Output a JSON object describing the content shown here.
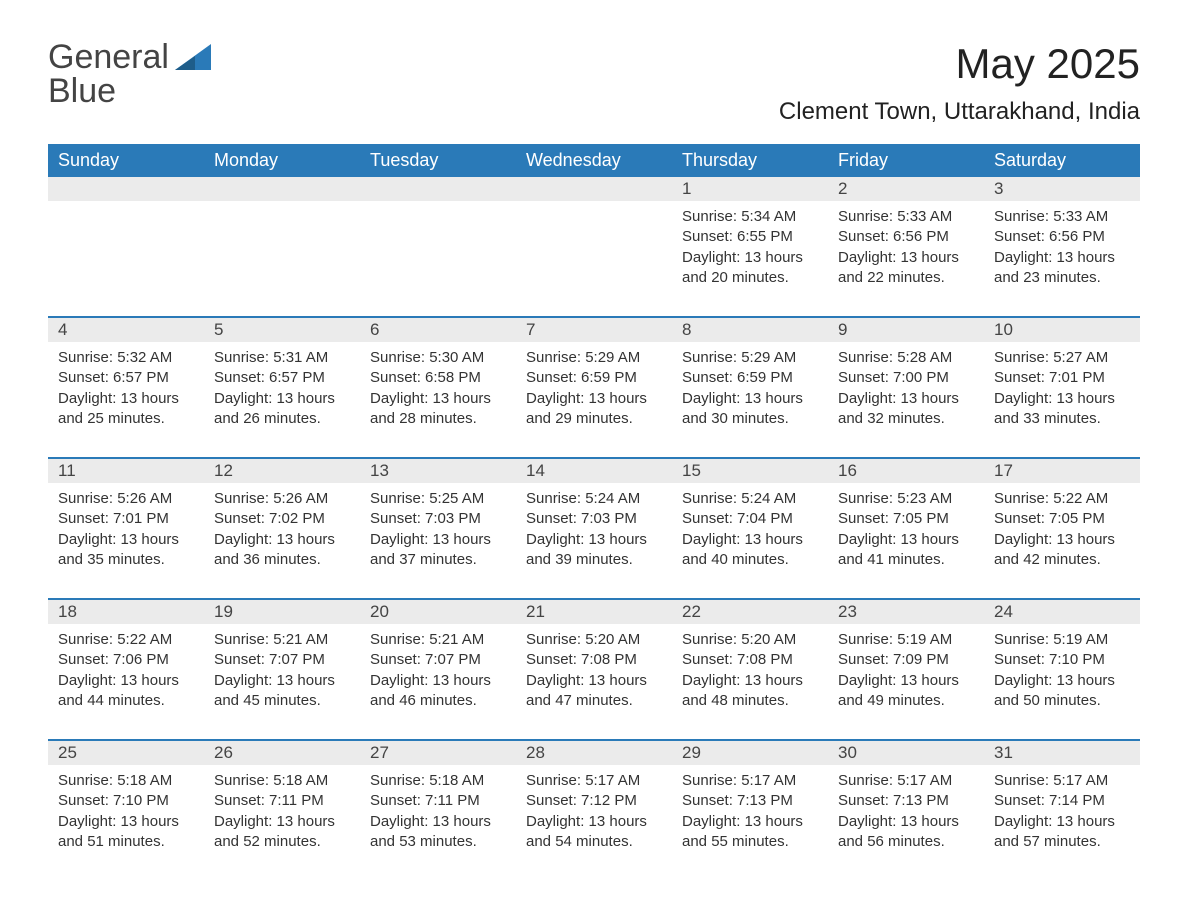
{
  "logo": {
    "word1": "General",
    "word2": "Blue"
  },
  "title": "May 2025",
  "location": "Clement Town, Uttarakhand, India",
  "colors": {
    "header_bg": "#2a7ab8",
    "header_text": "#ffffff",
    "daynum_bg": "#ebebeb",
    "text": "#333333",
    "row_divider": "#2a7ab8",
    "page_bg": "#ffffff"
  },
  "fonts": {
    "title_size_pt": 32,
    "location_size_pt": 18,
    "dayheader_size_pt": 14,
    "body_size_pt": 11
  },
  "day_headers": [
    "Sunday",
    "Monday",
    "Tuesday",
    "Wednesday",
    "Thursday",
    "Friday",
    "Saturday"
  ],
  "weeks": [
    [
      null,
      null,
      null,
      null,
      {
        "n": "1",
        "sunrise": "Sunrise: 5:34 AM",
        "sunset": "Sunset: 6:55 PM",
        "day": "Daylight: 13 hours and 20 minutes."
      },
      {
        "n": "2",
        "sunrise": "Sunrise: 5:33 AM",
        "sunset": "Sunset: 6:56 PM",
        "day": "Daylight: 13 hours and 22 minutes."
      },
      {
        "n": "3",
        "sunrise": "Sunrise: 5:33 AM",
        "sunset": "Sunset: 6:56 PM",
        "day": "Daylight: 13 hours and 23 minutes."
      }
    ],
    [
      {
        "n": "4",
        "sunrise": "Sunrise: 5:32 AM",
        "sunset": "Sunset: 6:57 PM",
        "day": "Daylight: 13 hours and 25 minutes."
      },
      {
        "n": "5",
        "sunrise": "Sunrise: 5:31 AM",
        "sunset": "Sunset: 6:57 PM",
        "day": "Daylight: 13 hours and 26 minutes."
      },
      {
        "n": "6",
        "sunrise": "Sunrise: 5:30 AM",
        "sunset": "Sunset: 6:58 PM",
        "day": "Daylight: 13 hours and 28 minutes."
      },
      {
        "n": "7",
        "sunrise": "Sunrise: 5:29 AM",
        "sunset": "Sunset: 6:59 PM",
        "day": "Daylight: 13 hours and 29 minutes."
      },
      {
        "n": "8",
        "sunrise": "Sunrise: 5:29 AM",
        "sunset": "Sunset: 6:59 PM",
        "day": "Daylight: 13 hours and 30 minutes."
      },
      {
        "n": "9",
        "sunrise": "Sunrise: 5:28 AM",
        "sunset": "Sunset: 7:00 PM",
        "day": "Daylight: 13 hours and 32 minutes."
      },
      {
        "n": "10",
        "sunrise": "Sunrise: 5:27 AM",
        "sunset": "Sunset: 7:01 PM",
        "day": "Daylight: 13 hours and 33 minutes."
      }
    ],
    [
      {
        "n": "11",
        "sunrise": "Sunrise: 5:26 AM",
        "sunset": "Sunset: 7:01 PM",
        "day": "Daylight: 13 hours and 35 minutes."
      },
      {
        "n": "12",
        "sunrise": "Sunrise: 5:26 AM",
        "sunset": "Sunset: 7:02 PM",
        "day": "Daylight: 13 hours and 36 minutes."
      },
      {
        "n": "13",
        "sunrise": "Sunrise: 5:25 AM",
        "sunset": "Sunset: 7:03 PM",
        "day": "Daylight: 13 hours and 37 minutes."
      },
      {
        "n": "14",
        "sunrise": "Sunrise: 5:24 AM",
        "sunset": "Sunset: 7:03 PM",
        "day": "Daylight: 13 hours and 39 minutes."
      },
      {
        "n": "15",
        "sunrise": "Sunrise: 5:24 AM",
        "sunset": "Sunset: 7:04 PM",
        "day": "Daylight: 13 hours and 40 minutes."
      },
      {
        "n": "16",
        "sunrise": "Sunrise: 5:23 AM",
        "sunset": "Sunset: 7:05 PM",
        "day": "Daylight: 13 hours and 41 minutes."
      },
      {
        "n": "17",
        "sunrise": "Sunrise: 5:22 AM",
        "sunset": "Sunset: 7:05 PM",
        "day": "Daylight: 13 hours and 42 minutes."
      }
    ],
    [
      {
        "n": "18",
        "sunrise": "Sunrise: 5:22 AM",
        "sunset": "Sunset: 7:06 PM",
        "day": "Daylight: 13 hours and 44 minutes."
      },
      {
        "n": "19",
        "sunrise": "Sunrise: 5:21 AM",
        "sunset": "Sunset: 7:07 PM",
        "day": "Daylight: 13 hours and 45 minutes."
      },
      {
        "n": "20",
        "sunrise": "Sunrise: 5:21 AM",
        "sunset": "Sunset: 7:07 PM",
        "day": "Daylight: 13 hours and 46 minutes."
      },
      {
        "n": "21",
        "sunrise": "Sunrise: 5:20 AM",
        "sunset": "Sunset: 7:08 PM",
        "day": "Daylight: 13 hours and 47 minutes."
      },
      {
        "n": "22",
        "sunrise": "Sunrise: 5:20 AM",
        "sunset": "Sunset: 7:08 PM",
        "day": "Daylight: 13 hours and 48 minutes."
      },
      {
        "n": "23",
        "sunrise": "Sunrise: 5:19 AM",
        "sunset": "Sunset: 7:09 PM",
        "day": "Daylight: 13 hours and 49 minutes."
      },
      {
        "n": "24",
        "sunrise": "Sunrise: 5:19 AM",
        "sunset": "Sunset: 7:10 PM",
        "day": "Daylight: 13 hours and 50 minutes."
      }
    ],
    [
      {
        "n": "25",
        "sunrise": "Sunrise: 5:18 AM",
        "sunset": "Sunset: 7:10 PM",
        "day": "Daylight: 13 hours and 51 minutes."
      },
      {
        "n": "26",
        "sunrise": "Sunrise: 5:18 AM",
        "sunset": "Sunset: 7:11 PM",
        "day": "Daylight: 13 hours and 52 minutes."
      },
      {
        "n": "27",
        "sunrise": "Sunrise: 5:18 AM",
        "sunset": "Sunset: 7:11 PM",
        "day": "Daylight: 13 hours and 53 minutes."
      },
      {
        "n": "28",
        "sunrise": "Sunrise: 5:17 AM",
        "sunset": "Sunset: 7:12 PM",
        "day": "Daylight: 13 hours and 54 minutes."
      },
      {
        "n": "29",
        "sunrise": "Sunrise: 5:17 AM",
        "sunset": "Sunset: 7:13 PM",
        "day": "Daylight: 13 hours and 55 minutes."
      },
      {
        "n": "30",
        "sunrise": "Sunrise: 5:17 AM",
        "sunset": "Sunset: 7:13 PM",
        "day": "Daylight: 13 hours and 56 minutes."
      },
      {
        "n": "31",
        "sunrise": "Sunrise: 5:17 AM",
        "sunset": "Sunset: 7:14 PM",
        "day": "Daylight: 13 hours and 57 minutes."
      }
    ]
  ]
}
